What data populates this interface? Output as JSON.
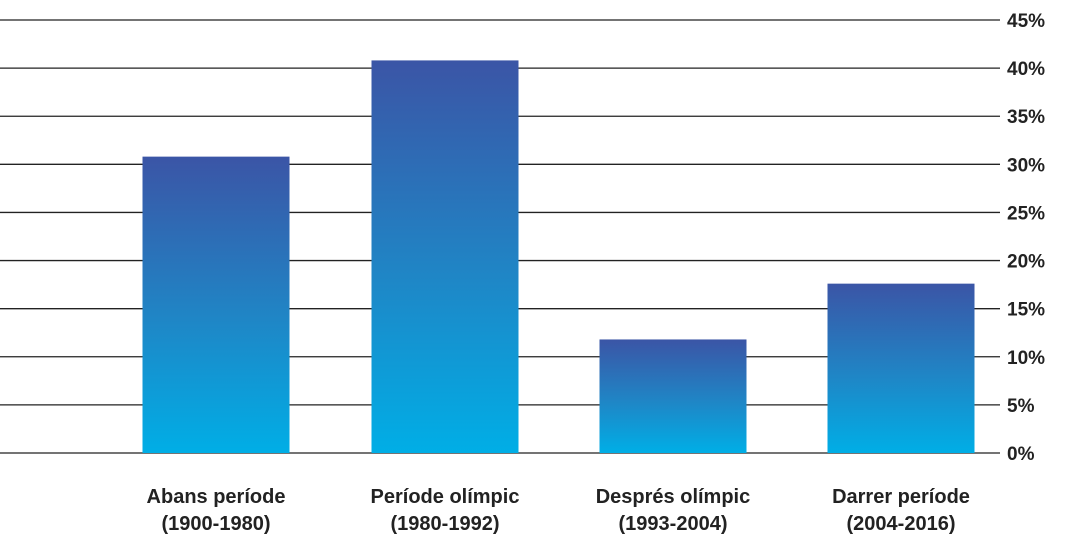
{
  "chart_data": {
    "type": "bar",
    "title": "",
    "xlabel": "",
    "ylabel": "",
    "ylim": [
      0,
      45
    ],
    "y_ticks": [
      0,
      5,
      10,
      15,
      20,
      25,
      30,
      35,
      40,
      45
    ],
    "y_tick_labels": [
      "0%",
      "5%",
      "10%",
      "15%",
      "20%",
      "25%",
      "30%",
      "35%",
      "40%",
      "45%"
    ],
    "y_axis_side": "right",
    "grid": true,
    "categories": [
      {
        "line1": "Abans període",
        "line2": "(1900-1980)"
      },
      {
        "line1": "Període olímpic",
        "line2": "(1980-1992)"
      },
      {
        "line1": "Després  olímpic",
        "line2": "(1993-2004)"
      },
      {
        "line1": "Darrer període",
        "line2": "(2004-2016)"
      }
    ],
    "values": [
      30.8,
      40.8,
      11.8,
      17.6
    ],
    "colors": {
      "bar_top": "#3b55a6",
      "bar_bottom": "#00aee6",
      "grid": "#222222",
      "text": "#222222"
    }
  }
}
